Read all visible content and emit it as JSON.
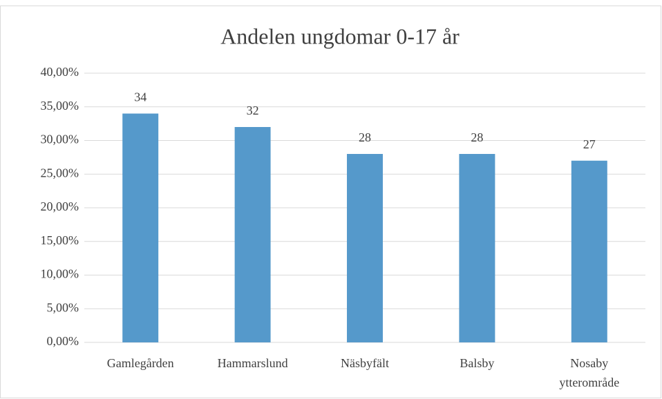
{
  "chart_data": {
    "type": "bar",
    "title": "Andelen ungdomar 0-17 år",
    "categories": [
      "Gamlegården",
      "Hammarslund",
      "Näsbyfält",
      "Balsby",
      "Nosaby ytterområde"
    ],
    "values": [
      34,
      32,
      28,
      28,
      27
    ],
    "color": "#5599cb",
    "ylim": [
      0,
      40
    ],
    "yticks": [
      {
        "value": 0,
        "label": "0,00%"
      },
      {
        "value": 5,
        "label": "5,00%"
      },
      {
        "value": 10,
        "label": "10,00%"
      },
      {
        "value": 15,
        "label": "15,00%"
      },
      {
        "value": 20,
        "label": "20,00%"
      },
      {
        "value": 25,
        "label": "25,00%"
      },
      {
        "value": 30,
        "label": "30,00%"
      },
      {
        "value": 35,
        "label": "35,00%"
      },
      {
        "value": 40,
        "label": "40,00%"
      }
    ],
    "grid": true
  }
}
